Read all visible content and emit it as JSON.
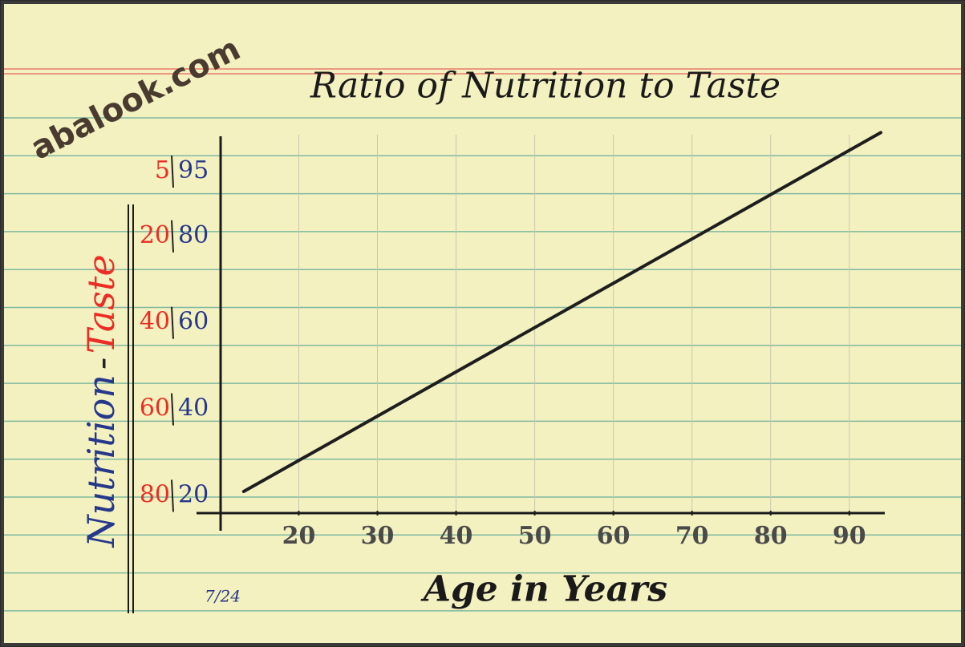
{
  "chart_data": {
    "type": "line",
    "title": "Ratio of Nutrition to Taste",
    "x_label": "Age in Years",
    "y_label_parts": [
      "Nutrition",
      "-",
      "Taste"
    ],
    "y_label_colors": [
      "#26388a",
      "#222222",
      "#ec2d25"
    ],
    "x": [
      13,
      94
    ],
    "series": [
      {
        "name": "Nutrition",
        "color": "#1e1e1e",
        "values": [
          21,
          104
        ]
      }
    ],
    "xlim": [
      7,
      94
    ],
    "xticks": [
      20,
      30,
      40,
      50,
      60,
      70,
      80,
      90
    ],
    "ylim": [
      16,
      105
    ],
    "yticks": [
      20,
      40,
      60,
      80,
      95
    ],
    "ytick_color": "#26388a",
    "y2lim": [
      84,
      -5
    ],
    "y2ticks": [
      80,
      60,
      40,
      20,
      5
    ],
    "y2tick_color": "#ec2d25",
    "grid": true,
    "annotations": [
      "abalook.com",
      "7/24"
    ]
  }
}
